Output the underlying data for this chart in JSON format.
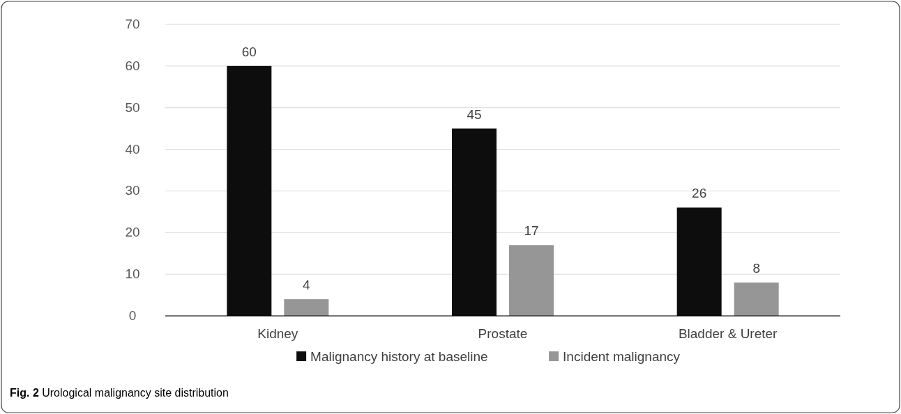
{
  "chart_data": {
    "type": "bar",
    "categories": [
      "Kidney",
      "Prostate",
      "Bladder & Ureter"
    ],
    "series": [
      {
        "name": "Malignancy history at baseline",
        "color": "#0d0d0d",
        "values": [
          60,
          45,
          26
        ]
      },
      {
        "name": "Incident malignancy",
        "color": "#969696",
        "values": [
          4,
          17,
          8
        ]
      }
    ],
    "ylim": [
      0,
      70
    ],
    "yticks": [
      0,
      10,
      20,
      30,
      40,
      50,
      60,
      70
    ],
    "grid": "y",
    "data_labels": true,
    "legend": "bottom",
    "annotations": [
      "Fig. 2 Urological malignancy site distribution"
    ]
  }
}
